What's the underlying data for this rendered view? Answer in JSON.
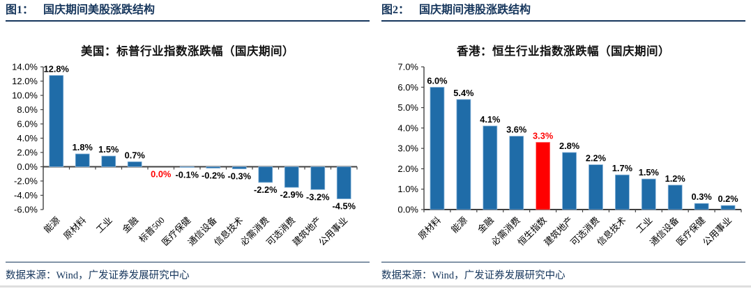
{
  "panels": [
    {
      "fig_label": "图1：",
      "fig_title": "国庆期间美股涨跌结构",
      "source_note": "数据来源：Wind，广发证券发展研究中心"
    },
    {
      "fig_label": "图2：",
      "fig_title": "国庆期间港股涨跌结构",
      "source_note": "数据来源：Wind，广发证券发展研究中心"
    }
  ],
  "colors": {
    "accent_navy": "#16365C",
    "bar_blue": "#1F6CA8",
    "bar_blue_edge": "#8FB9DC",
    "highlight_red": "#FF0000",
    "highlight_red_edge": "#FF8080",
    "axis_gray": "#404040",
    "label_black": "#000000"
  },
  "chart_data": [
    {
      "type": "bar",
      "title": "美国：标普行业指数涨跌幅（国庆期间）",
      "categories": [
        "能源",
        "原材料",
        "工业",
        "金融",
        "标普500",
        "医疗保健",
        "通信设备",
        "信息技术",
        "必需消费",
        "可选消费",
        "建筑地产",
        "公用事业"
      ],
      "values": [
        12.8,
        1.8,
        1.5,
        0.7,
        0.0,
        -0.1,
        -0.2,
        -0.3,
        -2.2,
        -2.9,
        -3.2,
        -4.5
      ],
      "value_labels": [
        "12.8%",
        "1.8%",
        "1.5%",
        "0.7%",
        "0.0%",
        "-0.1%",
        "-0.2%",
        "-0.3%",
        "-2.2%",
        "-2.9%",
        "-3.2%",
        "-4.5%"
      ],
      "highlight_index": 4,
      "highlight_note": "标普500 value label shown in red",
      "ylim": [
        -6,
        14
      ],
      "ytick_step": 2,
      "ytick_labels": [
        "-6.0%",
        "-4.0%",
        "-2.0%",
        "0.0%",
        "2.0%",
        "4.0%",
        "6.0%",
        "8.0%",
        "10.0%",
        "12.0%",
        "14.0%"
      ],
      "grid": false,
      "legend": "none"
    },
    {
      "type": "bar",
      "title": "香港：恒生行业指数涨跌幅（国庆期间）",
      "categories": [
        "原材料",
        "能源",
        "金融",
        "必需消费",
        "恒生指数",
        "建筑地产",
        "可选消费",
        "信息技术",
        "工业",
        "通信设备",
        "医疗保健",
        "公用事业"
      ],
      "values": [
        6.0,
        5.4,
        4.1,
        3.6,
        3.3,
        2.8,
        2.2,
        1.7,
        1.5,
        1.2,
        0.3,
        0.2
      ],
      "value_labels": [
        "6.0%",
        "5.4%",
        "4.1%",
        "3.6%",
        "3.3%",
        "2.8%",
        "2.2%",
        "1.7%",
        "1.5%",
        "1.2%",
        "0.3%",
        "0.2%"
      ],
      "highlight_index": 4,
      "highlight_note": "恒生指数 bar and value label shown in red",
      "ylim": [
        0,
        7
      ],
      "ytick_step": 1,
      "ytick_labels": [
        "0.0%",
        "1.0%",
        "2.0%",
        "3.0%",
        "4.0%",
        "5.0%",
        "6.0%",
        "7.0%"
      ],
      "grid": false,
      "legend": "none"
    }
  ]
}
